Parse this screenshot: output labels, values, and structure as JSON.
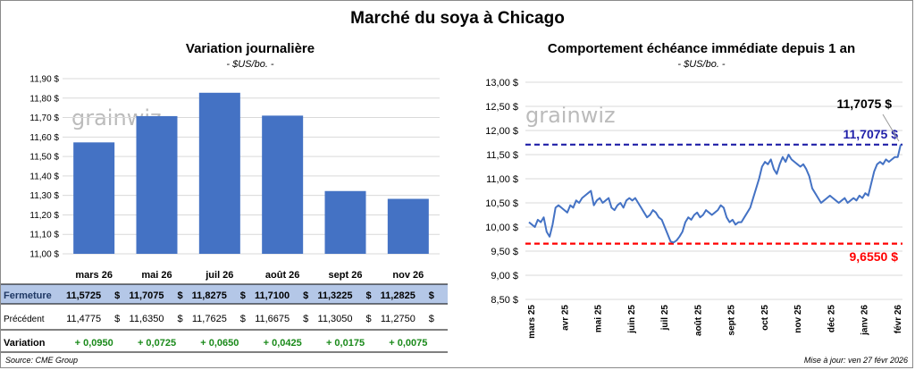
{
  "title": "Marché du soya à Chicago",
  "left": {
    "title": "Variation journalière",
    "unit": "- $US/bo. -",
    "watermark": "grainwiz"
  },
  "right": {
    "title": "Comportement échéance immédiate depuis 1 an",
    "unit": "- $US/bo. -",
    "watermark": "grainwiz",
    "current_label": "11,7075 $",
    "high_label": "11,7075 $",
    "low_label": "9,6550 $"
  },
  "footer": {
    "source": "Source: CME Group",
    "updated": "Mise à jour: ven 27 févr 2026"
  },
  "table": {
    "rows": [
      {
        "label": "Fermeture",
        "values": [
          "11,5725",
          "11,7075",
          "11,8275",
          "11,7100",
          "11,3225",
          "11,2825"
        ]
      },
      {
        "label": "Précédent",
        "values": [
          "11,4775",
          "11,6350",
          "11,7625",
          "11,6675",
          "11,3050",
          "11,2750"
        ]
      },
      {
        "label": "Variation",
        "values": [
          "+ 0,0950",
          "+ 0,0725",
          "+ 0,0650",
          "+ 0,0425",
          "+ 0,0175",
          "+ 0,0075"
        ]
      }
    ],
    "currency": "$"
  },
  "colors": {
    "bar": "#4472c4",
    "line": "#4472c4",
    "high": "#1f1fa8",
    "low": "#ff0000",
    "variation": "#1a8a1a",
    "fermeture_bg": "#b4c7e7"
  },
  "chart_data": [
    {
      "type": "bar",
      "categories": [
        "mars 26",
        "mai 26",
        "juil 26",
        "août 26",
        "sept 26",
        "nov 26"
      ],
      "values": [
        11.5725,
        11.7075,
        11.8275,
        11.71,
        11.3225,
        11.2825
      ],
      "title": "Variation journalière",
      "ylim": [
        11.0,
        11.9
      ],
      "yticks": [
        11.0,
        11.1,
        11.2,
        11.3,
        11.4,
        11.5,
        11.6,
        11.7,
        11.8,
        11.9
      ],
      "ytick_labels": [
        "11,00 $",
        "11,10 $",
        "11,20 $",
        "11,30 $",
        "11,40 $",
        "11,50 $",
        "11,60 $",
        "11,70 $",
        "11,80 $",
        "11,90 $"
      ],
      "grid": true
    },
    {
      "type": "line",
      "title": "Comportement échéance immédiate depuis 1 an",
      "x_labels": [
        "mars 25",
        "avr 25",
        "mai 25",
        "juin 25",
        "juil 25",
        "août 25",
        "sept 25",
        "oct 25",
        "nov 25",
        "déc 25",
        "janv 26",
        "févr 26"
      ],
      "ylim": [
        8.5,
        13.0
      ],
      "yticks": [
        8.5,
        9.0,
        9.5,
        10.0,
        10.5,
        11.0,
        11.5,
        12.0,
        12.5,
        13.0
      ],
      "ytick_labels": [
        "8,50 $",
        "9,00 $",
        "9,50 $",
        "10,00 $",
        "10,50 $",
        "11,00 $",
        "11,50 $",
        "12,00 $",
        "12,50 $",
        "13,00 $"
      ],
      "high": 11.7075,
      "low": 9.655,
      "grid": true,
      "values": [
        10.1,
        10.05,
        10.0,
        10.15,
        10.1,
        10.2,
        9.9,
        9.8,
        10.05,
        10.4,
        10.45,
        10.4,
        10.35,
        10.3,
        10.45,
        10.4,
        10.55,
        10.5,
        10.6,
        10.65,
        10.7,
        10.75,
        10.45,
        10.55,
        10.6,
        10.5,
        10.55,
        10.6,
        10.4,
        10.35,
        10.45,
        10.5,
        10.4,
        10.55,
        10.6,
        10.55,
        10.6,
        10.5,
        10.4,
        10.3,
        10.2,
        10.25,
        10.35,
        10.3,
        10.2,
        10.15,
        10.0,
        9.85,
        9.7,
        9.68,
        9.72,
        9.8,
        9.9,
        10.1,
        10.2,
        10.15,
        10.25,
        10.3,
        10.2,
        10.25,
        10.35,
        10.3,
        10.25,
        10.3,
        10.35,
        10.45,
        10.4,
        10.2,
        10.1,
        10.15,
        10.05,
        10.1,
        10.1,
        10.2,
        10.3,
        10.4,
        10.6,
        10.8,
        11.0,
        11.25,
        11.35,
        11.3,
        11.4,
        11.2,
        11.1,
        11.3,
        11.45,
        11.35,
        11.5,
        11.4,
        11.35,
        11.3,
        11.25,
        11.3,
        11.2,
        11.05,
        10.8,
        10.7,
        10.6,
        10.5,
        10.55,
        10.6,
        10.65,
        10.6,
        10.55,
        10.5,
        10.55,
        10.6,
        10.5,
        10.55,
        10.6,
        10.55,
        10.65,
        10.6,
        10.7,
        10.65,
        10.9,
        11.15,
        11.3,
        11.35,
        11.3,
        11.4,
        11.35,
        11.4,
        11.45,
        11.45,
        11.71
      ]
    }
  ]
}
